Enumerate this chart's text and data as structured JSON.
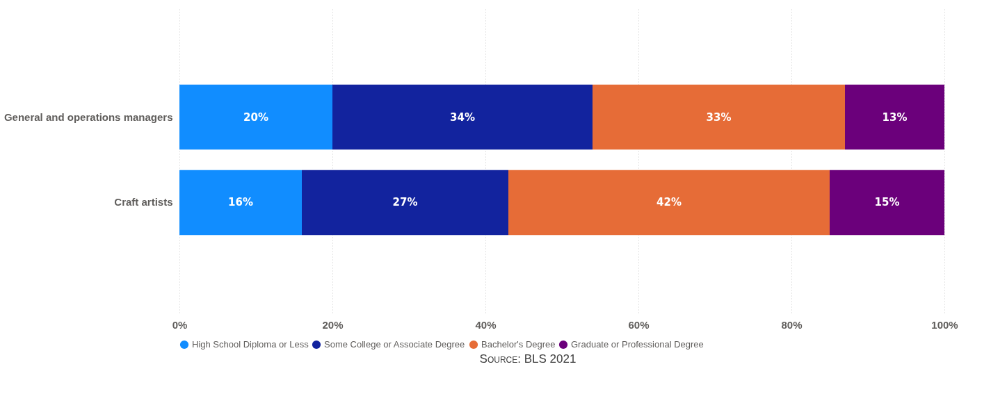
{
  "chart_data": {
    "type": "bar",
    "orientation": "horizontal",
    "stacked": true,
    "categories": [
      "General and operations managers",
      "Craft artists"
    ],
    "series": [
      {
        "name": "High School Diploma or Less",
        "color": "#118dff",
        "values": [
          20,
          16
        ],
        "value_labels": [
          "20%",
          "16%"
        ]
      },
      {
        "name": "Some College or Associate Degree",
        "color": "#12239e",
        "values": [
          34,
          27
        ],
        "value_labels": [
          "34%",
          "27%"
        ]
      },
      {
        "name": "Bachelor's Degree",
        "color": "#e66c37",
        "values": [
          33,
          42
        ],
        "value_labels": [
          "33%",
          "42%"
        ]
      },
      {
        "name": "Graduate or Professional Degree",
        "color": "#6b007b",
        "values": [
          13,
          15
        ],
        "value_labels": [
          "13%",
          "15%"
        ]
      }
    ],
    "xlim": [
      0,
      100
    ],
    "xticks": [
      {
        "value": 0,
        "label": "0%"
      },
      {
        "value": 20,
        "label": "20%"
      },
      {
        "value": 40,
        "label": "40%"
      },
      {
        "value": 60,
        "label": "60%"
      },
      {
        "value": 80,
        "label": "80%"
      },
      {
        "value": 100,
        "label": "100%"
      }
    ],
    "grid": "x",
    "legend": "bottom",
    "annotations": [
      "Source: BLS 2021"
    ]
  }
}
